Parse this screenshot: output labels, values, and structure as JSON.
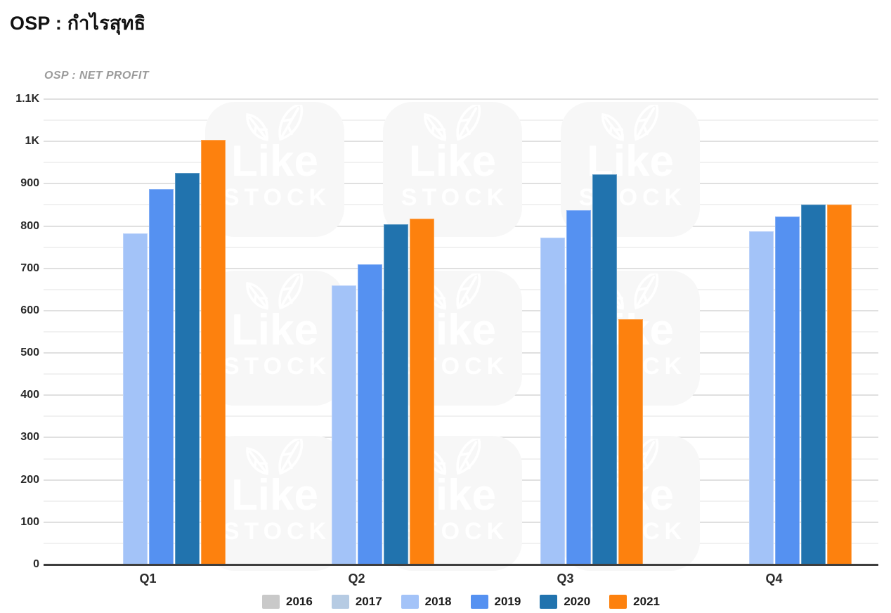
{
  "page": {
    "title": "OSP : กำไรสุทธิ",
    "subtitle": "OSP : NET PROFIT"
  },
  "watermark": {
    "icon": "two-leaves-icon",
    "line1": "Like",
    "line2": "STOCK",
    "tile_color": "#f7f7f7",
    "text_color": "#ffffff"
  },
  "chart_data": {
    "type": "bar",
    "title": "OSP : กำไรสุทธิ",
    "subtitle": "OSP : NET PROFIT",
    "categories": [
      "Q1",
      "Q2",
      "Q3",
      "Q4"
    ],
    "series": [
      {
        "name": "2016",
        "color": "#c9c9c9",
        "values": [
          null,
          null,
          null,
          null
        ]
      },
      {
        "name": "2017",
        "color": "#b6cbe3",
        "values": [
          null,
          null,
          null,
          null
        ]
      },
      {
        "name": "2018",
        "color": "#a3c3f8",
        "values": [
          783,
          660,
          772,
          788
        ]
      },
      {
        "name": "2019",
        "color": "#5591f1",
        "values": [
          888,
          710,
          837,
          822
        ]
      },
      {
        "name": "2020",
        "color": "#2173ae",
        "values": [
          925,
          805,
          922,
          851
        ]
      },
      {
        "name": "2021",
        "color": "#fd810e",
        "values": [
          1003,
          818,
          580,
          850
        ]
      }
    ],
    "ylim": [
      0,
      1100
    ],
    "ytick_step": 100,
    "minor_gridline_step": 50,
    "ytick_labels": [
      "0",
      "100",
      "200",
      "300",
      "400",
      "500",
      "600",
      "700",
      "800",
      "900",
      "1K",
      "1.1K"
    ],
    "xlabel": "",
    "ylabel": "",
    "grid": true,
    "legend_position": "bottom",
    "style": {
      "major_gridline_color": "#e0e0e0",
      "minor_gridline_color": "#f1f1f1",
      "axis_line_color": "#3e3e3e",
      "tick_text_color": "#2b2b2b",
      "title_color": "#121212",
      "subtitle_color": "#9b9b9b"
    }
  }
}
